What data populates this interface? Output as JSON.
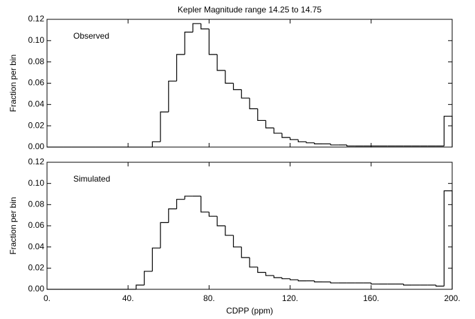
{
  "chart_data": [
    {
      "type": "histogram",
      "title": "Kepler Magnitude range 14.25 to 14.75",
      "annotation": "Observed",
      "ylabel": "Fraction per bin",
      "color": "#000000",
      "bins": [
        0,
        4,
        8,
        12,
        16,
        20,
        24,
        28,
        32,
        36,
        40,
        44,
        48,
        52,
        56,
        60,
        64,
        68,
        72,
        76,
        80,
        84,
        88,
        92,
        96,
        100,
        104,
        108,
        112,
        116,
        120,
        124,
        128,
        132,
        136,
        140,
        144,
        148,
        152,
        156,
        160,
        164,
        168,
        172,
        176,
        180,
        184,
        188,
        192,
        196,
        200
      ],
      "values": [
        0,
        0,
        0,
        0,
        0,
        0,
        0,
        0,
        0,
        0,
        0,
        0,
        0,
        0.005,
        0.033,
        0.062,
        0.087,
        0.108,
        0.116,
        0.111,
        0.087,
        0.072,
        0.06,
        0.054,
        0.046,
        0.036,
        0.025,
        0.018,
        0.013,
        0.009,
        0.007,
        0.005,
        0.004,
        0.003,
        0.003,
        0.002,
        0.002,
        0.001,
        0.001,
        0.001,
        0.001,
        0.001,
        0.001,
        0.001,
        0.001,
        0.001,
        0.001,
        0.001,
        0.001,
        0.029
      ],
      "xlim": [
        0,
        200
      ],
      "xticks": [
        0,
        40,
        80,
        120,
        160,
        200
      ],
      "ylim": [
        0,
        0.12
      ],
      "yticks": [
        {
          "value": 0,
          "label": "0.00"
        },
        {
          "value": 0.02,
          "label": "0.02"
        },
        {
          "value": 0.04,
          "label": "0.04"
        },
        {
          "value": 0.06,
          "label": "0.06"
        },
        {
          "value": 0.08,
          "label": "0.08"
        },
        {
          "value": 0.1,
          "label": "0.10"
        },
        {
          "value": 0.12,
          "label": "0.12"
        }
      ]
    },
    {
      "type": "histogram",
      "annotation": "Simulated",
      "ylabel": "Fraction per bin",
      "xlabel": "CDPP (ppm)",
      "color": "#000000",
      "bins": [
        0,
        4,
        8,
        12,
        16,
        20,
        24,
        28,
        32,
        36,
        40,
        44,
        48,
        52,
        56,
        60,
        64,
        68,
        72,
        76,
        80,
        84,
        88,
        92,
        96,
        100,
        104,
        108,
        112,
        116,
        120,
        124,
        128,
        132,
        136,
        140,
        144,
        148,
        152,
        156,
        160,
        164,
        168,
        172,
        176,
        180,
        184,
        188,
        192,
        196,
        200
      ],
      "values": [
        0,
        0,
        0,
        0,
        0,
        0,
        0,
        0,
        0,
        0,
        0,
        0.004,
        0.017,
        0.039,
        0.063,
        0.076,
        0.085,
        0.088,
        0.088,
        0.073,
        0.069,
        0.06,
        0.051,
        0.04,
        0.03,
        0.021,
        0.016,
        0.013,
        0.011,
        0.01,
        0.009,
        0.008,
        0.008,
        0.007,
        0.007,
        0.006,
        0.006,
        0.006,
        0.006,
        0.006,
        0.005,
        0.005,
        0.005,
        0.005,
        0.004,
        0.004,
        0.004,
        0.004,
        0.003,
        0.093
      ],
      "xlim": [
        0,
        200
      ],
      "xticks": [
        {
          "value": 0,
          "label": "0."
        },
        {
          "value": 40,
          "label": "40."
        },
        {
          "value": 80,
          "label": "80."
        },
        {
          "value": 120,
          "label": "120."
        },
        {
          "value": 160,
          "label": "160."
        },
        {
          "value": 200,
          "label": "200."
        }
      ],
      "ylim": [
        0,
        0.12
      ],
      "yticks": [
        {
          "value": 0,
          "label": "0.00"
        },
        {
          "value": 0.02,
          "label": "0.02"
        },
        {
          "value": 0.04,
          "label": "0.04"
        },
        {
          "value": 0.06,
          "label": "0.06"
        },
        {
          "value": 0.08,
          "label": "0.08"
        },
        {
          "value": 0.1,
          "label": "0.10"
        },
        {
          "value": 0.12,
          "label": "0.12"
        }
      ]
    }
  ]
}
